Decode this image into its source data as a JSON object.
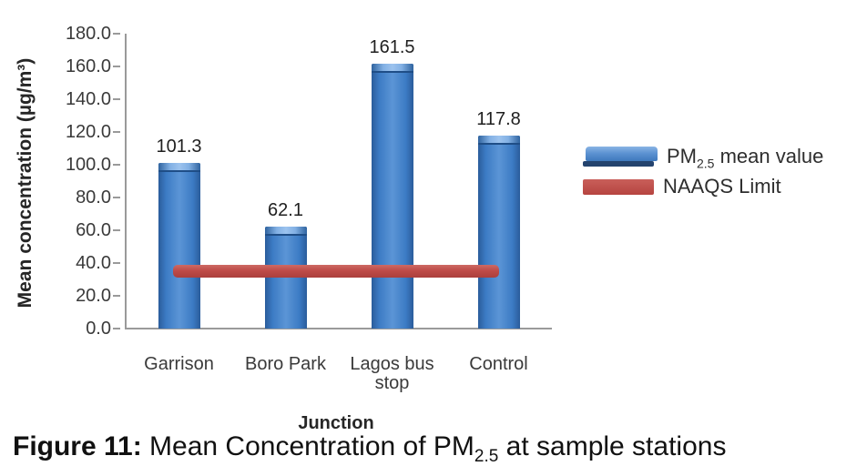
{
  "figure_caption": {
    "bold": "Figure 11:",
    "before_sub": " Mean Concentration of PM",
    "sub": "2.5",
    "after_sub": " at sample stations"
  },
  "legend": {
    "pm_prefix": "PM",
    "pm_sub": "2.5",
    "pm_suffix": " mean value",
    "naaqs_label": "NAAQS Limit"
  },
  "colors": {
    "bar_blue": "#3c7bc4",
    "bar_edge_blue": "#2a5c9b",
    "bar_highlight_blue": "#9cc3ee",
    "naaqs_red": "#be4b48",
    "axis_gray": "#9a9a9a"
  },
  "chart_data": {
    "type": "bar",
    "categories": [
      "Garrison",
      "Boro Park",
      "Lagos bus stop",
      "Control"
    ],
    "series": [
      {
        "name": "PM2.5 mean value",
        "type": "bar",
        "values": [
          101.3,
          62.1,
          161.5,
          117.8
        ],
        "color": "#3c7bc4"
      },
      {
        "name": "NAAQS Limit",
        "type": "line",
        "value": 35,
        "color": "#be4b48"
      }
    ],
    "data_labels": [
      "101.3",
      "62.1",
      "161.5",
      "117.8"
    ],
    "xlabel": "Junction",
    "ylabel": "Mean concentration (µg/m³)",
    "ylim": [
      0,
      180
    ],
    "ytick_step": 20,
    "ytick_labels": [
      "0.0",
      "20.0",
      "40.0",
      "60.0",
      "80.0",
      "100.0",
      "120.0",
      "140.0",
      "160.0",
      "180.0"
    ],
    "grid": false,
    "legend_position": "right"
  }
}
